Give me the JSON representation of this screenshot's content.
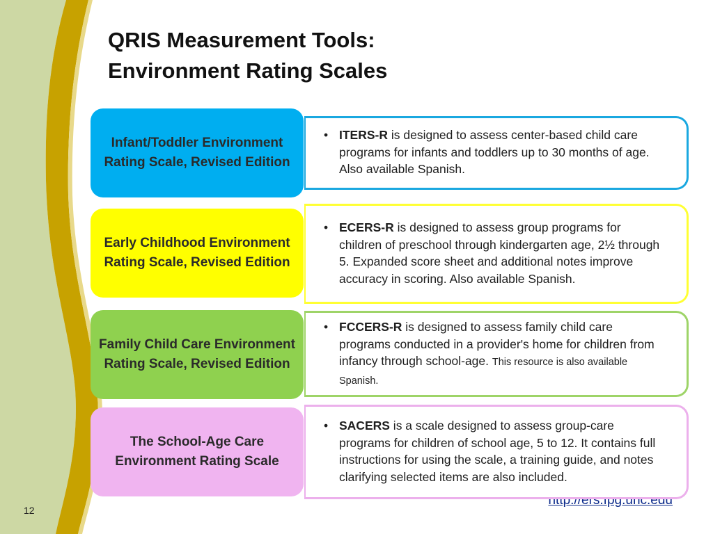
{
  "slide": {
    "title_line1": "QRIS Measurement Tools:",
    "title_line2": "Environment Rating Scales",
    "page_number": "12",
    "link": "http://ers.fpg.unc.edu"
  },
  "rows": [
    {
      "label": "Infant/Toddler Environment Rating Scale, Revised Edition",
      "term": "ITERS-R",
      "text": " is designed to assess center-based child care programs for infants and toddlers up to 30 months of age. Also available Spanish.",
      "small_text": "",
      "label_color": "#00aef0",
      "border_color": "#1aa8e0"
    },
    {
      "label": "Early Childhood Environment Rating Scale, Revised Edition",
      "term": "ECERS-R",
      "text": " is designed to assess group programs for children of preschool through kindergarten age, 2½ through 5. Expanded score sheet and additional notes improve accuracy in scoring. Also available Spanish.",
      "small_text": "",
      "label_color": "#ffff00",
      "border_color": "#ffff33"
    },
    {
      "label": "Family Child Care Environment Rating Scale, Revised Edition",
      "term": "FCCERS-R",
      "text": " is designed to assess family child care programs conducted in a provider's home for children from infancy through school-age. ",
      "small_text": "This resource is also available Spanish.",
      "label_color": "#8fd14f",
      "border_color": "#9ed468"
    },
    {
      "label": "The School-Age Care Environment Rating Scale",
      "term": "SACERS",
      "text": " is a scale designed to assess group-care programs for children of school age, 5 to 12. It contains full instructions for using the scale, a training guide, and notes clarifying selected items are also included.",
      "small_text": "",
      "label_color": "#f0b4f0",
      "border_color": "#ecb0ec"
    }
  ]
}
